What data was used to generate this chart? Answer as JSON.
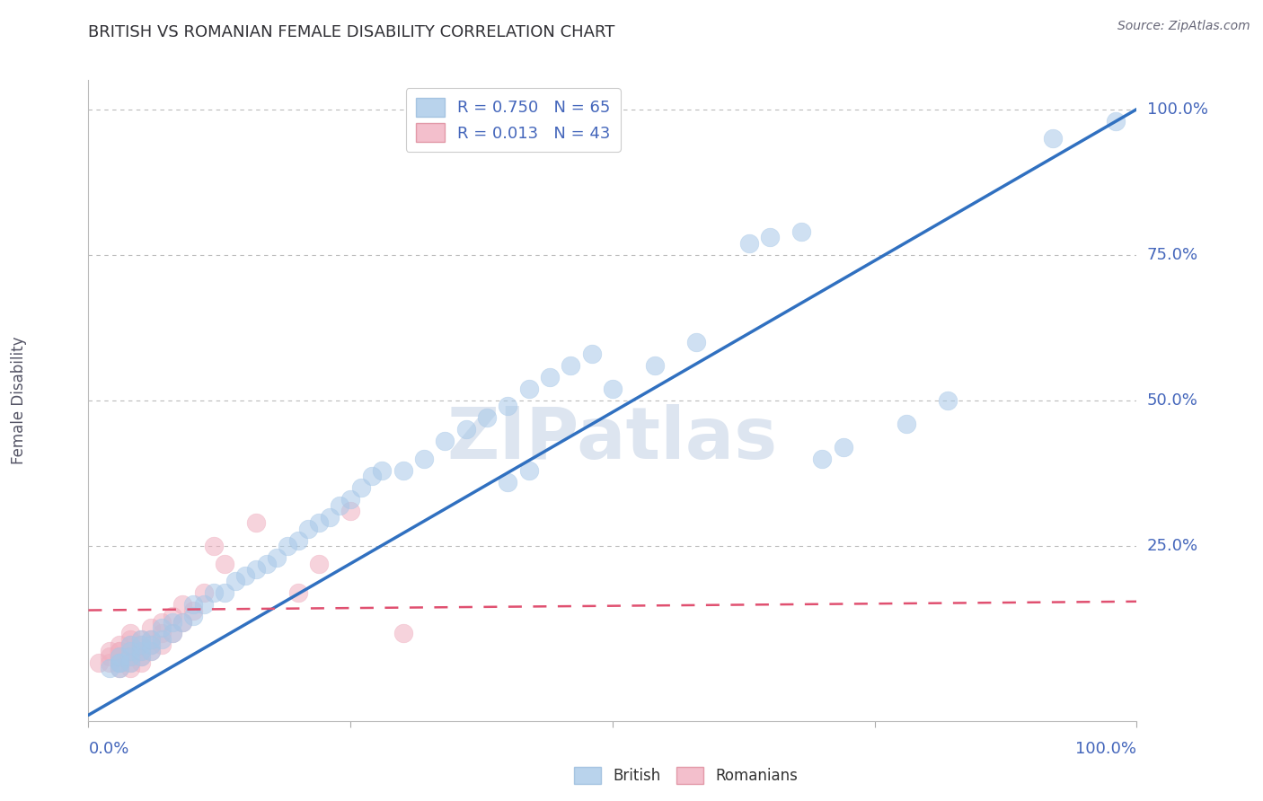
{
  "title": "BRITISH VS ROMANIAN FEMALE DISABILITY CORRELATION CHART",
  "source": "Source: ZipAtlas.com",
  "ylabel": "Female Disability",
  "british_R": "0.750",
  "british_N": "65",
  "romanian_R": "0.013",
  "romanian_N": "43",
  "british_color": "#a8c8e8",
  "romanian_color": "#f0b0c0",
  "british_line_color": "#3070c0",
  "romanian_line_color": "#e05070",
  "grid_color": "#bbbbbb",
  "watermark_color": "#dde5f0",
  "title_color": "#303035",
  "axis_label_color": "#4466bb",
  "british_x": [
    0.02,
    0.03,
    0.03,
    0.03,
    0.03,
    0.04,
    0.04,
    0.04,
    0.04,
    0.05,
    0.05,
    0.05,
    0.05,
    0.06,
    0.06,
    0.06,
    0.07,
    0.07,
    0.08,
    0.08,
    0.09,
    0.1,
    0.1,
    0.11,
    0.12,
    0.13,
    0.14,
    0.15,
    0.16,
    0.17,
    0.18,
    0.19,
    0.2,
    0.21,
    0.22,
    0.23,
    0.24,
    0.25,
    0.26,
    0.27,
    0.28,
    0.3,
    0.32,
    0.34,
    0.36,
    0.38,
    0.4,
    0.42,
    0.44,
    0.46,
    0.48,
    0.5,
    0.54,
    0.58,
    0.4,
    0.42,
    0.72,
    0.78,
    0.63,
    0.65,
    0.68,
    0.7,
    0.82,
    0.92,
    0.98
  ],
  "british_y": [
    0.04,
    0.04,
    0.05,
    0.05,
    0.06,
    0.05,
    0.06,
    0.07,
    0.08,
    0.06,
    0.07,
    0.08,
    0.09,
    0.07,
    0.08,
    0.09,
    0.09,
    0.11,
    0.1,
    0.12,
    0.12,
    0.13,
    0.15,
    0.15,
    0.17,
    0.17,
    0.19,
    0.2,
    0.21,
    0.22,
    0.23,
    0.25,
    0.26,
    0.28,
    0.29,
    0.3,
    0.32,
    0.33,
    0.35,
    0.37,
    0.38,
    0.38,
    0.4,
    0.43,
    0.45,
    0.47,
    0.49,
    0.52,
    0.54,
    0.56,
    0.58,
    0.52,
    0.56,
    0.6,
    0.36,
    0.38,
    0.42,
    0.46,
    0.77,
    0.78,
    0.79,
    0.4,
    0.5,
    0.95,
    0.98
  ],
  "romanian_x": [
    0.01,
    0.02,
    0.02,
    0.02,
    0.03,
    0.03,
    0.03,
    0.03,
    0.03,
    0.03,
    0.03,
    0.04,
    0.04,
    0.04,
    0.04,
    0.04,
    0.04,
    0.04,
    0.05,
    0.05,
    0.05,
    0.05,
    0.05,
    0.06,
    0.06,
    0.06,
    0.06,
    0.07,
    0.07,
    0.07,
    0.08,
    0.08,
    0.09,
    0.09,
    0.1,
    0.11,
    0.12,
    0.13,
    0.16,
    0.2,
    0.22,
    0.25,
    0.3
  ],
  "romanian_y": [
    0.05,
    0.05,
    0.06,
    0.07,
    0.04,
    0.05,
    0.06,
    0.06,
    0.07,
    0.07,
    0.08,
    0.04,
    0.05,
    0.06,
    0.07,
    0.08,
    0.09,
    0.1,
    0.05,
    0.06,
    0.07,
    0.08,
    0.09,
    0.07,
    0.08,
    0.09,
    0.11,
    0.08,
    0.1,
    0.12,
    0.1,
    0.13,
    0.12,
    0.15,
    0.14,
    0.17,
    0.25,
    0.22,
    0.29,
    0.17,
    0.22,
    0.31,
    0.1
  ],
  "xlim": [
    0.0,
    1.0
  ],
  "ylim": [
    -0.05,
    1.05
  ],
  "british_trend_x": [
    0.0,
    1.0
  ],
  "british_trend_y": [
    -0.04,
    1.0
  ],
  "romanian_trend_x": [
    0.0,
    1.0
  ],
  "romanian_trend_y": [
    0.14,
    0.155
  ]
}
